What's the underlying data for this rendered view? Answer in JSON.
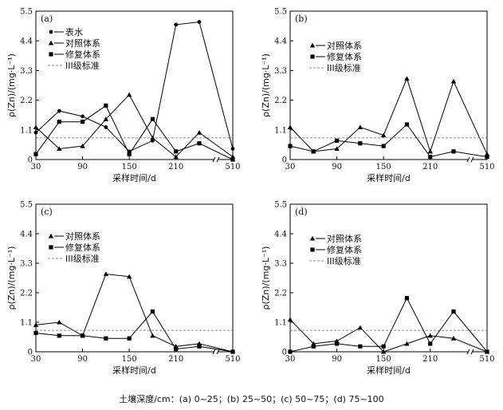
{
  "caption": "土壤深度/cm：(a) 0~25；(b) 25~50；(c) 50~75；(d) 75~100",
  "chart_data": [
    {
      "type": "line",
      "panel_label": "(a)",
      "xlabel": "采样时间/d",
      "ylabel": "ρ(Zn)/(mg·L⁻¹)",
      "x_ticks": [
        "30",
        "90",
        "150",
        "210",
        "510"
      ],
      "y_ticks": [
        "0",
        "1.1",
        "2.2",
        "3.3",
        "4.4",
        "5.5"
      ],
      "ylim": [
        0,
        5.5
      ],
      "x": [
        30,
        60,
        90,
        120,
        150,
        180,
        210,
        240,
        510
      ],
      "series": [
        {
          "name": "表水",
          "marker": "circle",
          "values": [
            1.0,
            1.8,
            1.6,
            1.2,
            0.3,
            0.7,
            5.0,
            5.1,
            0.4
          ]
        },
        {
          "name": "对照体系",
          "marker": "triangle",
          "values": [
            1.2,
            0.4,
            0.5,
            1.5,
            2.4,
            0.8,
            0.1,
            1.0,
            0.1
          ]
        },
        {
          "name": "修复体系",
          "marker": "square",
          "values": [
            0.2,
            1.4,
            1.4,
            2.0,
            0.2,
            1.5,
            0.3,
            0.6,
            0.0
          ]
        },
        {
          "name": "III级标准",
          "style": "dashed",
          "values": [
            0.8,
            0.8,
            0.8,
            0.8,
            0.8,
            0.8,
            0.8,
            0.8,
            0.8
          ]
        }
      ],
      "legend_position": "top-left"
    },
    {
      "type": "line",
      "panel_label": "(b)",
      "xlabel": "采样时间/d",
      "ylabel": "ρ(Zn)/(mg·L⁻¹)",
      "x_ticks": [
        "30",
        "90",
        "150",
        "210",
        "510"
      ],
      "y_ticks": [
        "0",
        "1.1",
        "2.2",
        "3.3",
        "4.4",
        "5.5"
      ],
      "ylim": [
        0,
        5.5
      ],
      "x": [
        30,
        60,
        90,
        120,
        150,
        180,
        210,
        240,
        510
      ],
      "series": [
        {
          "name": "对照体系",
          "marker": "triangle",
          "values": [
            1.2,
            0.3,
            0.4,
            1.2,
            0.9,
            3.0,
            0.3,
            2.9,
            0.2
          ]
        },
        {
          "name": "修复体系",
          "marker": "square",
          "values": [
            0.5,
            0.3,
            0.7,
            0.6,
            0.5,
            1.3,
            0.1,
            0.3,
            0.1
          ]
        },
        {
          "name": "III级标准",
          "style": "dashed",
          "values": [
            0.8,
            0.8,
            0.8,
            0.8,
            0.8,
            0.8,
            0.8,
            0.8,
            0.8
          ]
        }
      ],
      "legend_position": "top-left"
    },
    {
      "type": "line",
      "panel_label": "(c)",
      "xlabel": "采样时间/d",
      "ylabel": "ρ(Zn)/(mg·L⁻¹)",
      "x_ticks": [
        "30",
        "90",
        "150",
        "210",
        "510"
      ],
      "y_ticks": [
        "0",
        "1.1",
        "2.2",
        "3.3",
        "4.4",
        "5.5"
      ],
      "ylim": [
        0,
        5.5
      ],
      "x": [
        30,
        60,
        90,
        120,
        150,
        180,
        210,
        240,
        510
      ],
      "series": [
        {
          "name": "对照体系",
          "marker": "triangle",
          "values": [
            1.0,
            1.1,
            0.6,
            2.9,
            2.8,
            0.6,
            0.2,
            0.3,
            0.0
          ]
        },
        {
          "name": "修复体系",
          "marker": "square",
          "values": [
            0.7,
            0.6,
            0.6,
            0.5,
            0.5,
            1.5,
            0.1,
            0.2,
            0.0
          ]
        },
        {
          "name": "III级标准",
          "style": "dashed",
          "values": [
            0.8,
            0.8,
            0.8,
            0.8,
            0.8,
            0.8,
            0.8,
            0.8,
            0.8
          ]
        }
      ],
      "legend_position": "top-left"
    },
    {
      "type": "line",
      "panel_label": "(d)",
      "xlabel": "采样时间/d",
      "ylabel": "ρ(Zn)/(mg·L⁻¹)",
      "x_ticks": [
        "30",
        "90",
        "150",
        "210",
        "510"
      ],
      "y_ticks": [
        "0",
        "1.1",
        "2.2",
        "3.3",
        "4.4",
        "5.5"
      ],
      "ylim": [
        0,
        5.5
      ],
      "x": [
        30,
        60,
        90,
        120,
        150,
        180,
        210,
        240,
        510
      ],
      "series": [
        {
          "name": "对照体系",
          "marker": "triangle",
          "values": [
            1.2,
            0.3,
            0.4,
            0.9,
            0.0,
            0.3,
            0.6,
            0.5,
            0.0
          ]
        },
        {
          "name": "修复体系",
          "marker": "square",
          "values": [
            0.0,
            0.2,
            0.3,
            0.2,
            0.2,
            2.0,
            0.3,
            1.5,
            0.0
          ]
        },
        {
          "name": "III级标准",
          "style": "dashed",
          "values": [
            0.8,
            0.8,
            0.8,
            0.8,
            0.8,
            0.8,
            0.8,
            0.8,
            0.8
          ]
        }
      ],
      "legend_position": "top-center"
    }
  ]
}
